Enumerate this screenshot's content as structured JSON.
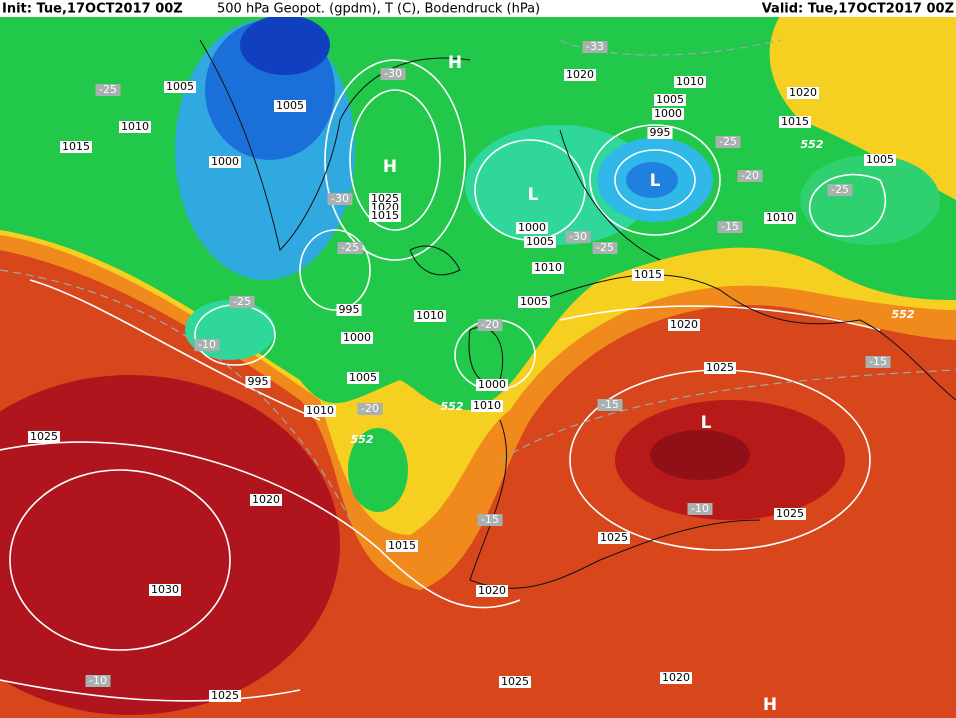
{
  "header": {
    "init": "Init: Tue,17OCT2017 00Z",
    "title": "500 hPa Geopot. (gpdm), T (C), Bodendruck (hPa)",
    "valid": "Valid: Tue,17OCT2017 00Z"
  },
  "map": {
    "pressure_centers": [
      "H",
      "H",
      "L",
      "L",
      "L",
      "H"
    ],
    "isobar_labels": [
      1005,
      1010,
      1015,
      1005,
      1000,
      1025,
      1020,
      1015,
      995,
      1000,
      1005,
      1010,
      995,
      1010,
      1000,
      1005,
      1010,
      1005,
      1000,
      1010,
      1020,
      1010,
      1005,
      1000,
      995,
      1015,
      1020,
      1025,
      1010,
      1005,
      1015,
      1020,
      1025,
      1020,
      1030,
      1015,
      1025,
      1020,
      1025,
      1025,
      1020,
      1025
    ],
    "temperature_labels": [
      -25,
      -30,
      -33,
      -30,
      -25,
      -25,
      -10,
      -20,
      -20,
      -30,
      -25,
      -25,
      -20,
      -15,
      -25,
      -15,
      -15,
      -10,
      -15,
      -10
    ],
    "geopotential_labels": [
      552,
      552,
      552,
      552
    ]
  }
}
